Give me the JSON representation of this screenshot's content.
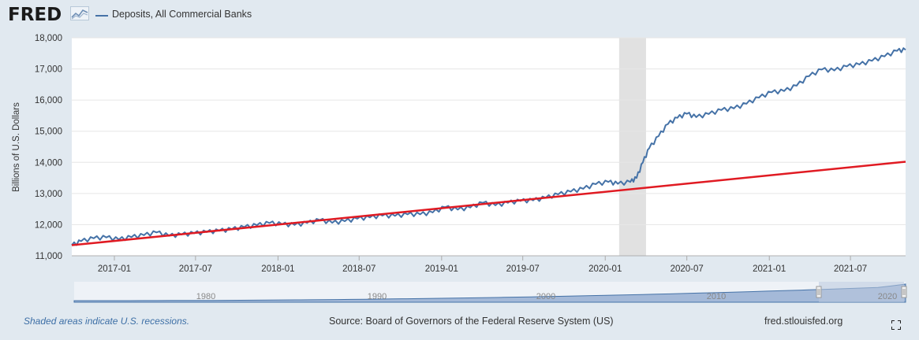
{
  "header": {
    "logo_text": "FRED",
    "logo_icon": "fred-chart-icon",
    "legend_label": "Deposits, All Commercial Banks"
  },
  "colors": {
    "series": "#4572a7",
    "trend": "#e01a22",
    "recession": "#e1e1e1",
    "navigator_fill": "#7d99c7"
  },
  "chart_data": {
    "type": "line",
    "ylabel": "Billions of U.S. Dollars",
    "ylim": [
      11000,
      18000
    ],
    "y_ticks": [
      "11,000",
      "12,000",
      "13,000",
      "14,000",
      "15,000",
      "16,000",
      "17,000",
      "18,000"
    ],
    "x_ticks": [
      "2017-01",
      "2017-07",
      "2018-01",
      "2018-07",
      "2019-01",
      "2019-07",
      "2020-01",
      "2020-07",
      "2021-01",
      "2021-07"
    ],
    "xlim": [
      "2016-09-28",
      "2021-11-01"
    ],
    "grid": true,
    "recession": {
      "start": "2020-02-01",
      "end": "2020-04-01"
    },
    "series": [
      {
        "name": "Deposits, All Commercial Banks",
        "points": [
          [
            "2016-09-28",
            11340
          ],
          [
            "2016-10-19",
            11470
          ],
          [
            "2016-11-16",
            11560
          ],
          [
            "2016-12-14",
            11590
          ],
          [
            "2017-01-11",
            11520
          ],
          [
            "2017-02-08",
            11600
          ],
          [
            "2017-03-08",
            11660
          ],
          [
            "2017-04-05",
            11750
          ],
          [
            "2017-05-03",
            11640
          ],
          [
            "2017-05-31",
            11680
          ],
          [
            "2017-06-28",
            11720
          ],
          [
            "2017-07-26",
            11760
          ],
          [
            "2017-08-23",
            11800
          ],
          [
            "2017-09-20",
            11850
          ],
          [
            "2017-10-18",
            11920
          ],
          [
            "2017-11-15",
            11980
          ],
          [
            "2017-12-13",
            12050
          ],
          [
            "2018-01-10",
            12010
          ],
          [
            "2018-02-07",
            11990
          ],
          [
            "2018-03-07",
            12050
          ],
          [
            "2018-04-04",
            12150
          ],
          [
            "2018-05-02",
            12060
          ],
          [
            "2018-05-30",
            12110
          ],
          [
            "2018-06-27",
            12190
          ],
          [
            "2018-07-25",
            12230
          ],
          [
            "2018-08-22",
            12290
          ],
          [
            "2018-09-19",
            12280
          ],
          [
            "2018-10-17",
            12330
          ],
          [
            "2018-11-14",
            12330
          ],
          [
            "2018-12-12",
            12390
          ],
          [
            "2019-01-09",
            12560
          ],
          [
            "2019-02-06",
            12480
          ],
          [
            "2019-03-06",
            12550
          ],
          [
            "2019-04-03",
            12700
          ],
          [
            "2019-05-01",
            12620
          ],
          [
            "2019-05-29",
            12700
          ],
          [
            "2019-06-26",
            12760
          ],
          [
            "2019-07-24",
            12780
          ],
          [
            "2019-08-21",
            12860
          ],
          [
            "2019-09-18",
            12970
          ],
          [
            "2019-10-16",
            13060
          ],
          [
            "2019-11-13",
            13150
          ],
          [
            "2019-12-11",
            13300
          ],
          [
            "2020-01-08",
            13370
          ],
          [
            "2020-01-29",
            13310
          ],
          [
            "2020-02-26",
            13370
          ],
          [
            "2020-03-11",
            13500
          ],
          [
            "2020-03-25",
            14000
          ],
          [
            "2020-04-08",
            14450
          ],
          [
            "2020-04-29",
            14840
          ],
          [
            "2020-05-20",
            15230
          ],
          [
            "2020-06-10",
            15430
          ],
          [
            "2020-07-01",
            15560
          ],
          [
            "2020-07-22",
            15450
          ],
          [
            "2020-08-19",
            15550
          ],
          [
            "2020-09-16",
            15680
          ],
          [
            "2020-10-14",
            15730
          ],
          [
            "2020-11-11",
            15880
          ],
          [
            "2020-12-09",
            16080
          ],
          [
            "2021-01-06",
            16250
          ],
          [
            "2021-02-03",
            16290
          ],
          [
            "2021-03-03",
            16460
          ],
          [
            "2021-03-31",
            16770
          ],
          [
            "2021-04-28",
            16980
          ],
          [
            "2021-05-26",
            16950
          ],
          [
            "2021-06-23",
            17080
          ],
          [
            "2021-07-21",
            17140
          ],
          [
            "2021-08-18",
            17260
          ],
          [
            "2021-09-15",
            17400
          ],
          [
            "2021-10-13",
            17580
          ],
          [
            "2021-11-01",
            17610
          ]
        ]
      },
      {
        "points": [
          [
            "2016-09-28",
            11340
          ],
          [
            "2021-11-01",
            14020
          ]
        ]
      }
    ]
  },
  "navigator": {
    "labels": [
      "1980",
      "1990",
      "2000",
      "2010",
      "2020"
    ],
    "selected_range": "2016-09 to 2021-11"
  },
  "footer": {
    "recession_note": "Shaded areas indicate U.S. recessions.",
    "source": "Source: Board of Governors of the Federal Reserve System (US)",
    "site": "fred.stlouisfed.org"
  },
  "fullscreen_icon": "fullscreen-icon"
}
